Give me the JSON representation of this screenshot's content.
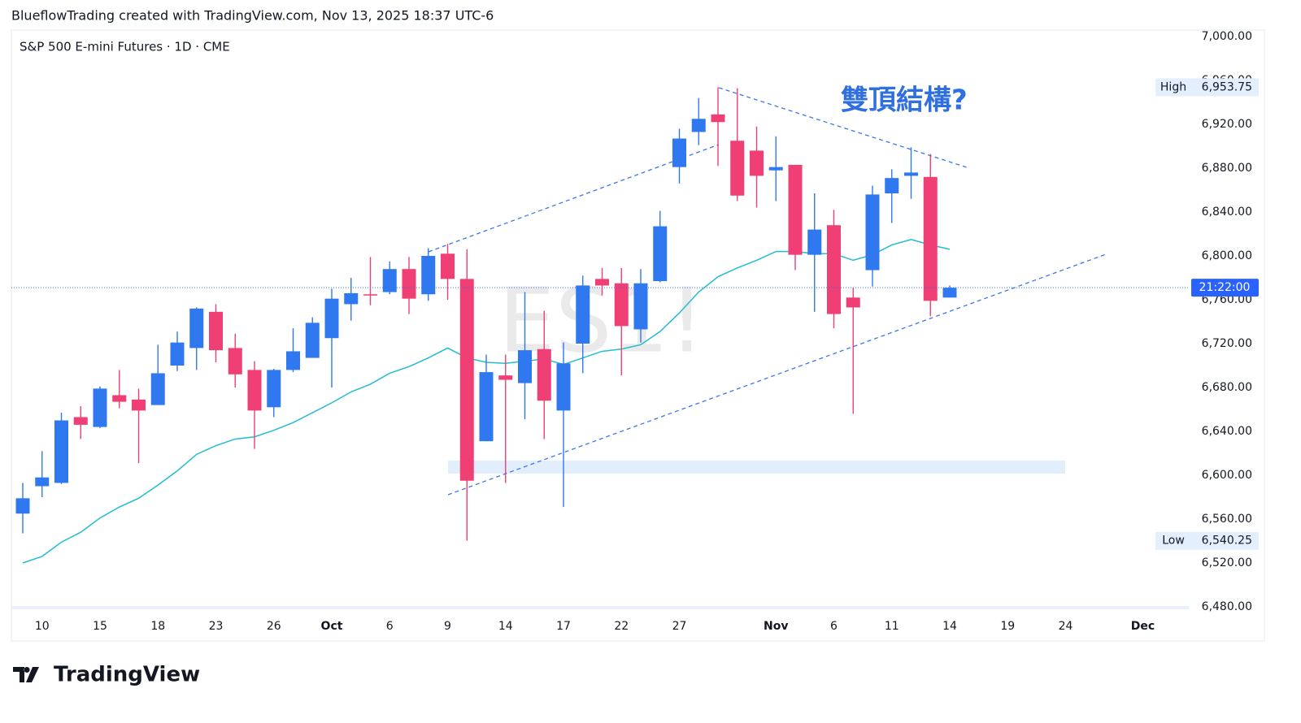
{
  "header": "BlueflowTrading created with TradingView.com, Nov 13, 2025 18:37 UTC-6",
  "brand": "TradingView",
  "chart_data": {
    "type": "candlestick",
    "title": "S&P 500 E-mini Futures · 1D · CME",
    "watermark": "ES1!",
    "annotation": "雙頂結構?",
    "categories": [
      null,
      "10",
      null,
      null,
      "15",
      null,
      null,
      "18",
      null,
      null,
      "23",
      null,
      null,
      "26",
      null,
      null,
      "Oct",
      null,
      null,
      "6",
      null,
      null,
      "9",
      null,
      null,
      "14",
      null,
      null,
      "17",
      null,
      null,
      "22",
      null,
      null,
      "27",
      null,
      null,
      null,
      null,
      "Nov",
      null,
      null,
      "6",
      null,
      null,
      "11",
      null,
      null,
      "14",
      null,
      null,
      "19",
      null,
      null,
      "24",
      null,
      null,
      null,
      "Dec"
    ],
    "up_color": "#2f78f0",
    "down_color": "#ef3f74",
    "open": [
      6565,
      6590,
      6593,
      6653,
      6644,
      6673,
      6669,
      6664,
      6700,
      6716,
      6749,
      6716,
      6696,
      6662,
      6696,
      6707,
      6725,
      6756,
      6765,
      6767,
      6788,
      6765,
      6802,
      6779,
      6631,
      6691,
      6684,
      6715,
      6659,
      6720,
      6779,
      6775,
      6733,
      6777,
      6881,
      6913,
      6929,
      6905,
      6896,
      6878,
      6883,
      6801,
      6828,
      6762,
      6787,
      6857,
      6873,
      6872,
      6762,
      null,
      null,
      null,
      null,
      null,
      null,
      null,
      null,
      null,
      null
    ],
    "high": [
      6593,
      6622,
      6657,
      6663,
      6681,
      6696,
      6679,
      6719,
      6731,
      6753,
      6756,
      6729,
      6704,
      6697,
      6734,
      6744,
      6770,
      6780,
      6799,
      6795,
      6799,
      6807,
      6811,
      6806,
      6710,
      6710,
      6767,
      6750,
      6721,
      6782,
      6789,
      6789,
      6788,
      6841,
      6916,
      6944,
      6953.75,
      6953,
      6918,
      6909,
      6883,
      6857,
      6842,
      6771,
      6864,
      6879,
      6899,
      6893,
      6773,
      null,
      null,
      null,
      null,
      null,
      null,
      null,
      null,
      null,
      null
    ],
    "low": [
      6547,
      6580,
      6592,
      6633,
      6643,
      6661,
      6611,
      6664,
      6695,
      6696,
      6703,
      6680,
      6624,
      6653,
      6694,
      6707,
      6680,
      6741,
      6755,
      6765,
      6747,
      6759,
      6760,
      6540.25,
      6631,
      6593,
      6651,
      6633,
      6571,
      6693,
      6764,
      6691,
      6721,
      6776,
      6866,
      6901,
      6882,
      6850,
      6844,
      6850,
      6787,
      6749,
      6734,
      6656,
      6772,
      6830,
      6852,
      6745,
      6762,
      null,
      null,
      null,
      null,
      null,
      null,
      null,
      null,
      null,
      null
    ],
    "close": [
      6579,
      6598,
      6650,
      6646,
      6679,
      6667,
      6659,
      6693,
      6721,
      6752,
      6714,
      6692,
      6659,
      6696,
      6713,
      6739,
      6761,
      6766,
      6764,
      6788,
      6761,
      6800,
      6779,
      6595,
      6694,
      6687,
      6714,
      6668,
      6702,
      6773,
      6773,
      6736,
      6775,
      6827,
      6907,
      6925,
      6922,
      6855,
      6873,
      6881,
      6801,
      6824,
      6747,
      6753,
      6856,
      6871,
      6876,
      6759,
      6771,
      null,
      null,
      null,
      null,
      null,
      null,
      null,
      null,
      null,
      null
    ],
    "overlays": [
      {
        "type": "line",
        "color": "#22bcd2",
        "values": [
          6520,
          6526,
          6539,
          6548,
          6561,
          6571,
          6579,
          6591,
          6604,
          6619,
          6627,
          6633,
          6635,
          6641,
          6648,
          6657,
          6666,
          6676,
          6683,
          6693,
          6699,
          6707,
          6716,
          6707,
          6703,
          6702,
          6704,
          6706,
          6701,
          6707,
          6713,
          6715,
          6719,
          6731,
          6748,
          6767,
          6781,
          6789,
          6796,
          6804,
          6804,
          6802,
          6802,
          6796,
          6801,
          6810,
          6815,
          6810,
          6806,
          null,
          null,
          null,
          null,
          null,
          null,
          null,
          null,
          null,
          null
        ]
      }
    ],
    "ylim": [
      6480,
      7000
    ],
    "yticks": [
      {
        "value": 6480,
        "label": "6,480.00"
      },
      {
        "value": 6520,
        "label": "6,520.00"
      },
      {
        "value": 6560,
        "label": "6,560.00"
      },
      {
        "value": 6600,
        "label": "6,600.00"
      },
      {
        "value": 6640,
        "label": "6,640.00"
      },
      {
        "value": 6680,
        "label": "6,680.00"
      },
      {
        "value": 6720,
        "label": "6,720.00"
      },
      {
        "value": 6760,
        "label": "6,760.00"
      },
      {
        "value": 6800,
        "label": "6,800.00"
      },
      {
        "value": 6840,
        "label": "6,840.00"
      },
      {
        "value": 6880,
        "label": "6,880.00"
      },
      {
        "value": 6920,
        "label": "6,920.00"
      },
      {
        "value": 6960,
        "label": "6,960.00"
      },
      {
        "value": 7000,
        "label": "7,000.00"
      }
    ],
    "grid": false,
    "high_marker": {
      "label": "High",
      "value": 6953.75,
      "value_label": "6,953.75"
    },
    "low_marker": {
      "label": "Low",
      "value": 6540.25,
      "value_label": "6,540.25"
    },
    "countdown": "21:22:00"
  }
}
